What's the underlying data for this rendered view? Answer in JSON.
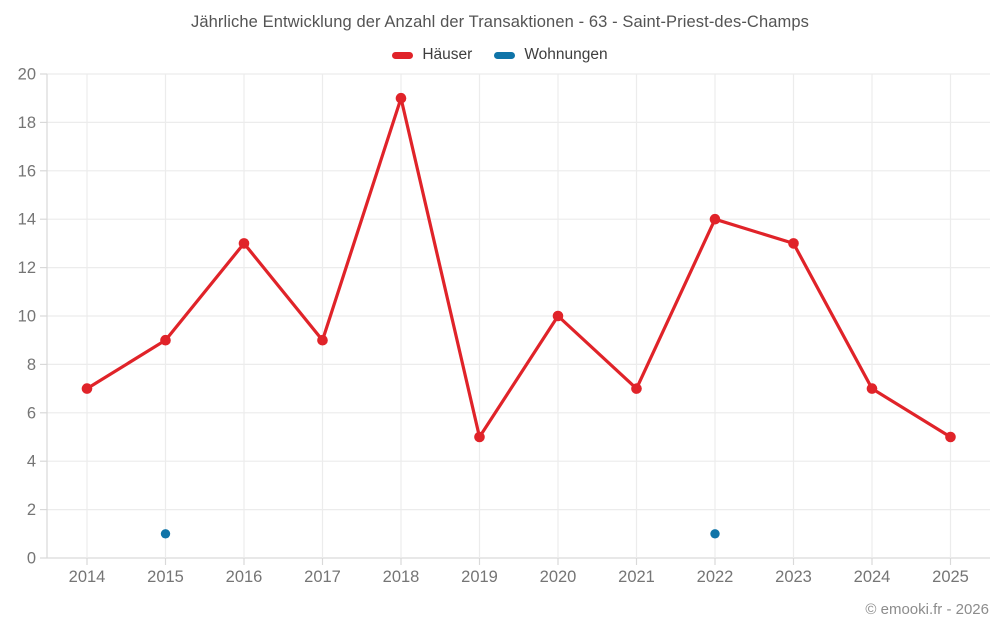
{
  "footer": "© emooki.fr - 2026",
  "chart_data": {
    "type": "line",
    "title": "Jährliche Entwicklung der Anzahl der Transaktionen - 63 - Saint-Priest-des-Champs",
    "x_labels": [
      "2014",
      "2015",
      "2016",
      "2017",
      "2018",
      "2019",
      "2020",
      "2021",
      "2022",
      "2023",
      "2024",
      "2025"
    ],
    "series": [
      {
        "name": "Häuser",
        "color": "#e02329",
        "mode": "line+markers",
        "values": [
          7,
          9,
          13,
          9,
          19,
          5,
          10,
          7,
          14,
          13,
          7,
          5
        ]
      },
      {
        "name": "Wohnungen",
        "color": "#0f74a8",
        "mode": "markers",
        "values": [
          null,
          1,
          null,
          null,
          null,
          null,
          null,
          null,
          1,
          null,
          null,
          null
        ]
      }
    ],
    "ylim": [
      0,
      20
    ],
    "ytick_step": 2,
    "grid": true,
    "legend_position": "top",
    "xlabel": "",
    "ylabel": ""
  },
  "style_colors": {
    "grid": "#ececec",
    "axis": "#d9d9d9",
    "tick_label": "#757575"
  }
}
